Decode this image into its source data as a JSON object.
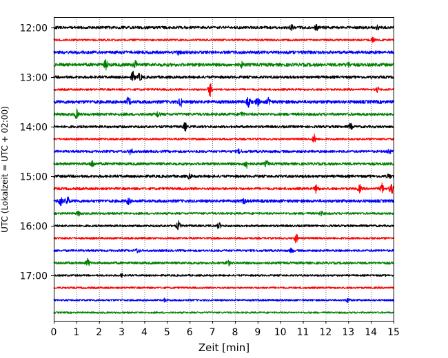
{
  "chart_data": {
    "type": "line",
    "xlabel": "Zeit  [min]",
    "ylabel": "UTC (Lokalzeit = UTC + 02:00)",
    "xlim": [
      0,
      15
    ],
    "x_ticks": [
      0,
      1,
      2,
      3,
      4,
      5,
      6,
      7,
      8,
      9,
      10,
      11,
      12,
      13,
      14,
      15
    ],
    "y_ticks": [
      "12:00",
      "13:00",
      "14:00",
      "15:00",
      "16:00",
      "17:00"
    ],
    "grid": "vertical dotted at each minute",
    "trace_colors": [
      "#000000",
      "#ff0000",
      "#0000ff",
      "#008000"
    ],
    "rows": [
      {
        "start": "12:00",
        "color": "#000000",
        "noise": 2.0,
        "events": [
          [
            10.5,
            4
          ],
          [
            11.6,
            3
          ],
          [
            14.3,
            2
          ]
        ]
      },
      {
        "start": "12:15",
        "color": "#ff0000",
        "noise": 1.5,
        "events": [
          [
            14.1,
            3
          ]
        ]
      },
      {
        "start": "12:30",
        "color": "#0000ff",
        "noise": 2.2,
        "events": [
          [
            5.5,
            2
          ]
        ]
      },
      {
        "start": "12:45",
        "color": "#008000",
        "noise": 2.4,
        "events": [
          [
            2.3,
            6
          ],
          [
            3.6,
            5
          ],
          [
            8.3,
            3
          ],
          [
            13.0,
            3
          ]
        ]
      },
      {
        "start": "13:00",
        "color": "#000000",
        "noise": 2.0,
        "events": [
          [
            3.5,
            7
          ],
          [
            3.8,
            5
          ]
        ]
      },
      {
        "start": "13:15",
        "color": "#ff0000",
        "noise": 1.5,
        "events": [
          [
            6.9,
            10
          ],
          [
            14.3,
            3
          ]
        ]
      },
      {
        "start": "13:30",
        "color": "#0000ff",
        "noise": 2.4,
        "events": [
          [
            3.3,
            6
          ],
          [
            5.6,
            6
          ],
          [
            8.6,
            6
          ],
          [
            9.0,
            5
          ],
          [
            9.5,
            5
          ]
        ]
      },
      {
        "start": "13:45",
        "color": "#008000",
        "noise": 2.0,
        "events": [
          [
            1.0,
            6
          ],
          [
            4.6,
            4
          ],
          [
            8.3,
            3
          ]
        ]
      },
      {
        "start": "14:00",
        "color": "#000000",
        "noise": 1.8,
        "events": [
          [
            5.8,
            6
          ],
          [
            13.1,
            4
          ]
        ]
      },
      {
        "start": "14:15",
        "color": "#ff0000",
        "noise": 1.5,
        "events": [
          [
            11.5,
            6
          ]
        ]
      },
      {
        "start": "14:30",
        "color": "#0000ff",
        "noise": 1.8,
        "events": [
          [
            3.4,
            4
          ],
          [
            8.2,
            3
          ],
          [
            14.8,
            3
          ]
        ]
      },
      {
        "start": "14:45",
        "color": "#008000",
        "noise": 2.0,
        "events": [
          [
            1.7,
            5
          ],
          [
            8.5,
            6
          ],
          [
            9.4,
            4
          ]
        ]
      },
      {
        "start": "15:00",
        "color": "#000000",
        "noise": 2.0,
        "events": [
          [
            6.0,
            3
          ],
          [
            14.8,
            3
          ]
        ]
      },
      {
        "start": "15:15",
        "color": "#ff0000",
        "noise": 1.8,
        "events": [
          [
            11.6,
            6
          ],
          [
            13.5,
            5
          ],
          [
            14.5,
            7
          ],
          [
            14.9,
            7
          ]
        ]
      },
      {
        "start": "15:30",
        "color": "#0000ff",
        "noise": 2.2,
        "events": [
          [
            0.3,
            7
          ],
          [
            0.6,
            6
          ],
          [
            3.3,
            4
          ],
          [
            8.4,
            3
          ]
        ]
      },
      {
        "start": "15:45",
        "color": "#008000",
        "noise": 1.6,
        "events": [
          [
            1.1,
            3
          ],
          [
            11.8,
            3
          ]
        ]
      },
      {
        "start": "16:00",
        "color": "#000000",
        "noise": 1.6,
        "events": [
          [
            5.5,
            6
          ],
          [
            7.3,
            4
          ]
        ]
      },
      {
        "start": "16:15",
        "color": "#ff0000",
        "noise": 1.5,
        "events": [
          [
            10.7,
            6
          ]
        ]
      },
      {
        "start": "16:30",
        "color": "#0000ff",
        "noise": 1.6,
        "events": [
          [
            3.7,
            3
          ],
          [
            10.5,
            3
          ]
        ]
      },
      {
        "start": "16:45",
        "color": "#008000",
        "noise": 1.8,
        "events": [
          [
            1.5,
            6
          ],
          [
            7.7,
            3
          ]
        ]
      },
      {
        "start": "17:00",
        "color": "#000000",
        "noise": 1.4,
        "events": [
          [
            3.0,
            2
          ]
        ]
      },
      {
        "start": "17:15",
        "color": "#ff0000",
        "noise": 1.4,
        "events": []
      },
      {
        "start": "17:30",
        "color": "#0000ff",
        "noise": 1.4,
        "events": [
          [
            4.9,
            2
          ],
          [
            13.0,
            3
          ]
        ]
      },
      {
        "start": "17:45",
        "color": "#008000",
        "noise": 1.3,
        "events": []
      }
    ]
  }
}
